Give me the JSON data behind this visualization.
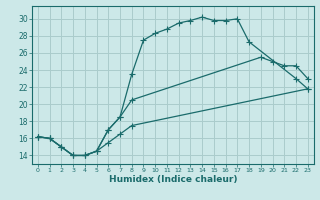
{
  "xlabel": "Humidex (Indice chaleur)",
  "bg_color": "#cce8e8",
  "grid_color": "#aacccc",
  "line_color": "#1a6b6b",
  "line1_x": [
    0,
    1,
    2,
    3,
    4,
    5,
    6,
    7,
    8,
    9,
    10,
    11,
    12,
    13,
    14,
    15,
    16,
    17,
    18,
    22,
    23
  ],
  "line1_y": [
    16.2,
    16.0,
    15.0,
    14.0,
    14.0,
    14.5,
    17.0,
    18.5,
    23.5,
    27.5,
    28.3,
    28.8,
    29.5,
    29.8,
    30.2,
    29.8,
    29.8,
    30.0,
    27.3,
    23.0,
    21.8
  ],
  "line2_x": [
    0,
    1,
    2,
    3,
    4,
    5,
    6,
    7,
    8,
    19,
    20,
    21,
    22,
    23
  ],
  "line2_y": [
    16.2,
    16.0,
    15.0,
    14.0,
    14.0,
    14.5,
    17.0,
    18.5,
    20.5,
    25.5,
    25.0,
    24.5,
    24.5,
    23.0
  ],
  "line3_x": [
    0,
    1,
    2,
    3,
    4,
    5,
    6,
    7,
    8,
    23
  ],
  "line3_y": [
    16.2,
    16.0,
    15.0,
    14.0,
    14.0,
    14.5,
    15.5,
    16.5,
    17.5,
    21.8
  ],
  "ylim": [
    13.0,
    31.5
  ],
  "xlim": [
    -0.5,
    23.5
  ],
  "yticks": [
    14,
    16,
    18,
    20,
    22,
    24,
    26,
    28,
    30
  ],
  "xticks": [
    0,
    1,
    2,
    3,
    4,
    5,
    6,
    7,
    8,
    9,
    10,
    11,
    12,
    13,
    14,
    15,
    16,
    17,
    18,
    19,
    20,
    21,
    22,
    23
  ]
}
